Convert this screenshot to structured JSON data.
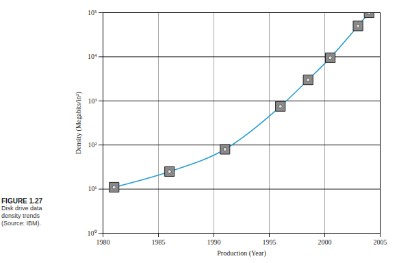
{
  "chart_data": {
    "type": "line",
    "figure_label": "FIGURE 1.27",
    "caption": "Disk drive data density trends (Source: IBM).",
    "x_label": "Production (Year)",
    "y_label": "Density (Megabits/in²)",
    "x": [
      1981,
      1986,
      1991,
      1996,
      1998.5,
      2000.5,
      2003,
      2004
    ],
    "series": [
      {
        "name": "Density",
        "color": "#2a9fd0",
        "marker": "square",
        "values": [
          11,
          25,
          80,
          750,
          3000,
          9500,
          50000,
          100000
        ]
      }
    ],
    "xlim": [
      1980,
      2005
    ],
    "xticks": [
      1980,
      1985,
      1990,
      1995,
      2000,
      2005
    ],
    "ylim": [
      1,
      100000
    ],
    "yticks": [
      {
        "value": 1,
        "label": "10⁰"
      },
      {
        "value": 10,
        "label": "10¹"
      },
      {
        "value": 100,
        "label": "10²"
      },
      {
        "value": 1000,
        "label": "10³"
      },
      {
        "value": 10000,
        "label": "10⁴"
      },
      {
        "value": 100000,
        "label": "10⁵"
      }
    ],
    "log": "y",
    "grid": true
  }
}
